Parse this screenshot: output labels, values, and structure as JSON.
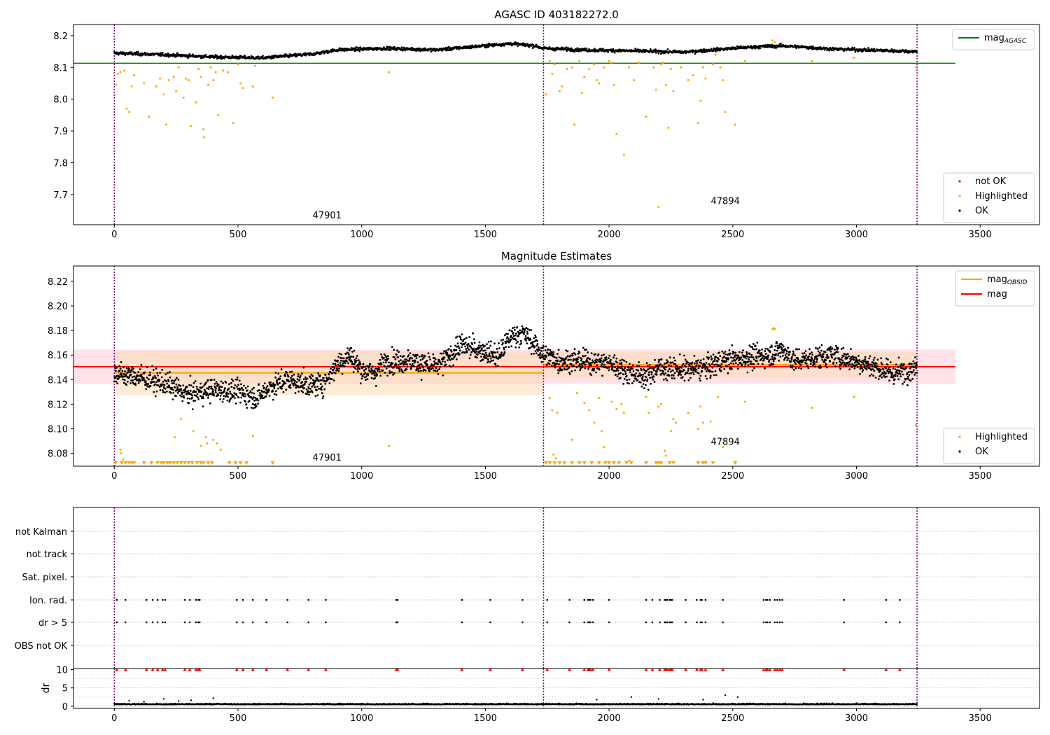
{
  "colors": {
    "ok": "#000000",
    "highlighted": "#ffa500",
    "not_ok": "#ff0000",
    "agasc_line": "#008000",
    "obs_boundary": "#800080",
    "mag_line": "#ff0000",
    "mag_band": "#ffc0cb",
    "obsid_line": "#ffa500",
    "obsid_band": "#ffdab0",
    "grid": "#b0b0b0"
  },
  "chart_data": [
    {
      "type": "scatter",
      "title": "AGASC ID 403182272.0",
      "xlabel": "",
      "ylabel": "",
      "xlim": [
        -165,
        3740
      ],
      "ylim": [
        7.605,
        8.235
      ],
      "xticks": [
        0,
        500,
        1000,
        1500,
        2000,
        2500,
        3000,
        3500
      ],
      "yticks": [
        7.7,
        7.8,
        7.9,
        8.0,
        8.1,
        8.2
      ],
      "obs_boundaries": [
        0,
        1735,
        3245
      ],
      "obsid_labels": [
        {
          "text": "47901",
          "x": 860,
          "y": 7.625
        },
        {
          "text": "47894",
          "x": 2470,
          "y": 7.67
        }
      ],
      "reference_line": {
        "name": "mag_AGASC",
        "y": 8.113,
        "x_range": [
          -165,
          3400
        ]
      },
      "trend_knots": [
        [
          0,
          8.145
        ],
        [
          200,
          8.14
        ],
        [
          400,
          8.133
        ],
        [
          600,
          8.13
        ],
        [
          800,
          8.142
        ],
        [
          900,
          8.155
        ],
        [
          1100,
          8.16
        ],
        [
          1300,
          8.155
        ],
        [
          1450,
          8.165
        ],
        [
          1600,
          8.175
        ],
        [
          1700,
          8.168
        ],
        [
          1735,
          8.16
        ],
        [
          1900,
          8.155
        ],
        [
          2100,
          8.152
        ],
        [
          2300,
          8.148
        ],
        [
          2500,
          8.16
        ],
        [
          2600,
          8.165
        ],
        [
          2700,
          8.168
        ],
        [
          2900,
          8.158
        ],
        [
          3245,
          8.15
        ]
      ],
      "highlighted_points": [
        [
          8,
          8.045
        ],
        [
          15,
          8.08
        ],
        [
          25,
          8.085
        ],
        [
          40,
          8.09
        ],
        [
          50,
          7.97
        ],
        [
          60,
          7.96
        ],
        [
          70,
          8.04
        ],
        [
          80,
          8.075
        ],
        [
          120,
          8.05
        ],
        [
          140,
          7.945
        ],
        [
          170,
          8.04
        ],
        [
          185,
          8.065
        ],
        [
          200,
          8.015
        ],
        [
          210,
          7.92
        ],
        [
          220,
          8.06
        ],
        [
          240,
          8.07
        ],
        [
          250,
          8.025
        ],
        [
          260,
          8.1
        ],
        [
          280,
          8.005
        ],
        [
          290,
          8.065
        ],
        [
          300,
          8.06
        ],
        [
          310,
          7.915
        ],
        [
          330,
          7.99
        ],
        [
          340,
          8.095
        ],
        [
          350,
          8.07
        ],
        [
          360,
          7.905
        ],
        [
          362,
          7.88
        ],
        [
          380,
          8.045
        ],
        [
          390,
          8.1
        ],
        [
          400,
          8.06
        ],
        [
          410,
          8.085
        ],
        [
          420,
          7.95
        ],
        [
          440,
          8.09
        ],
        [
          460,
          8.085
        ],
        [
          480,
          7.925
        ],
        [
          500,
          8.11
        ],
        [
          510,
          8.05
        ],
        [
          520,
          8.035
        ],
        [
          560,
          8.04
        ],
        [
          570,
          8.105
        ],
        [
          640,
          8.005
        ],
        [
          1110,
          8.085
        ],
        [
          1745,
          8.015
        ],
        [
          1760,
          8.12
        ],
        [
          1770,
          8.08
        ],
        [
          1780,
          8.11
        ],
        [
          1800,
          8.025
        ],
        [
          1810,
          8.04
        ],
        [
          1830,
          8.095
        ],
        [
          1850,
          8.1
        ],
        [
          1860,
          7.92
        ],
        [
          1880,
          8.12
        ],
        [
          1890,
          8.02
        ],
        [
          1900,
          8.07
        ],
        [
          1920,
          8.095
        ],
        [
          1940,
          8.11
        ],
        [
          1950,
          8.06
        ],
        [
          1960,
          8.05
        ],
        [
          1980,
          8.1
        ],
        [
          2000,
          8.12
        ],
        [
          2010,
          8.115
        ],
        [
          2020,
          8.045
        ],
        [
          2030,
          7.89
        ],
        [
          2060,
          7.825
        ],
        [
          2080,
          8.1
        ],
        [
          2100,
          8.06
        ],
        [
          2120,
          8.115
        ],
        [
          2150,
          7.945
        ],
        [
          2180,
          8.1
        ],
        [
          2190,
          8.03
        ],
        [
          2200,
          7.66
        ],
        [
          2210,
          8.11
        ],
        [
          2220,
          8.115
        ],
        [
          2230,
          8.045
        ],
        [
          2240,
          7.91
        ],
        [
          2250,
          8.095
        ],
        [
          2260,
          8.025
        ],
        [
          2290,
          8.1
        ],
        [
          2320,
          8.06
        ],
        [
          2340,
          8.075
        ],
        [
          2360,
          7.925
        ],
        [
          2370,
          7.995
        ],
        [
          2380,
          8.1
        ],
        [
          2390,
          8.065
        ],
        [
          2420,
          8.11
        ],
        [
          2430,
          8.14
        ],
        [
          2450,
          8.1
        ],
        [
          2460,
          8.06
        ],
        [
          2470,
          7.96
        ],
        [
          2510,
          7.92
        ],
        [
          2550,
          8.12
        ],
        [
          2660,
          8.185
        ],
        [
          2670,
          8.18
        ],
        [
          2820,
          8.12
        ],
        [
          2990,
          8.13
        ],
        [
          3240,
          8.1
        ]
      ]
    },
    {
      "type": "scatter",
      "title": "Magnitude Estimates",
      "xlabel": "",
      "ylabel": "",
      "xlim": [
        -165,
        3740
      ],
      "ylim": [
        8.0695,
        8.2325
      ],
      "xticks": [
        0,
        500,
        1000,
        1500,
        2000,
        2500,
        3000,
        3500
      ],
      "yticks": [
        8.08,
        8.1,
        8.12,
        8.14,
        8.16,
        8.18,
        8.2,
        8.22
      ],
      "obs_boundaries": [
        0,
        1735,
        3245
      ],
      "obsid_labels": [
        {
          "text": "47901",
          "x": 860,
          "y": 8.074
        },
        {
          "text": "47894",
          "x": 2470,
          "y": 8.087
        }
      ],
      "mag_line": {
        "name": "mag",
        "y": 8.1505,
        "band": [
          8.1365,
          8.1645
        ],
        "x_range": [
          -165,
          3400
        ]
      },
      "obsid_segments": [
        {
          "name": "47901",
          "x_range": [
            0,
            1735
          ],
          "y": 8.1455,
          "band": [
            8.1275,
            8.1635
          ]
        },
        {
          "name": "47894",
          "x_range": [
            1735,
            3245
          ],
          "y": 8.152,
          "band": [
            8.1415,
            8.1625
          ]
        }
      ],
      "trend_knots": [
        [
          0,
          8.145
        ],
        [
          100,
          8.142
        ],
        [
          200,
          8.137
        ],
        [
          300,
          8.128
        ],
        [
          400,
          8.132
        ],
        [
          500,
          8.13
        ],
        [
          580,
          8.125
        ],
        [
          620,
          8.133
        ],
        [
          700,
          8.14
        ],
        [
          800,
          8.135
        ],
        [
          850,
          8.138
        ],
        [
          900,
          8.152
        ],
        [
          950,
          8.16
        ],
        [
          1000,
          8.148
        ],
        [
          1050,
          8.145
        ],
        [
          1100,
          8.155
        ],
        [
          1200,
          8.155
        ],
        [
          1300,
          8.15
        ],
        [
          1350,
          8.158
        ],
        [
          1400,
          8.168
        ],
        [
          1450,
          8.165
        ],
        [
          1500,
          8.163
        ],
        [
          1550,
          8.158
        ],
        [
          1600,
          8.175
        ],
        [
          1650,
          8.178
        ],
        [
          1700,
          8.168
        ],
        [
          1735,
          8.16
        ],
        [
          1800,
          8.155
        ],
        [
          1900,
          8.155
        ],
        [
          2000,
          8.153
        ],
        [
          2100,
          8.145
        ],
        [
          2150,
          8.142
        ],
        [
          2200,
          8.15
        ],
        [
          2300,
          8.148
        ],
        [
          2400,
          8.15
        ],
        [
          2450,
          8.155
        ],
        [
          2550,
          8.158
        ],
        [
          2650,
          8.16
        ],
        [
          2700,
          8.165
        ],
        [
          2750,
          8.155
        ],
        [
          2900,
          8.16
        ],
        [
          3050,
          8.152
        ],
        [
          3150,
          8.145
        ],
        [
          3245,
          8.15
        ]
      ],
      "highlighted_points": [
        [
          25,
          8.083
        ],
        [
          28,
          8.08
        ],
        [
          35,
          8.075
        ],
        [
          245,
          8.093
        ],
        [
          270,
          8.108
        ],
        [
          320,
          8.098
        ],
        [
          350,
          8.086
        ],
        [
          370,
          8.093
        ],
        [
          375,
          8.088
        ],
        [
          400,
          8.091
        ],
        [
          415,
          8.088
        ],
        [
          430,
          8.083
        ],
        [
          560,
          8.094
        ],
        [
          1110,
          8.086
        ],
        [
          1760,
          8.125
        ],
        [
          1770,
          8.115
        ],
        [
          1775,
          8.079
        ],
        [
          1785,
          8.076
        ],
        [
          1790,
          8.113
        ],
        [
          1850,
          8.091
        ],
        [
          1870,
          8.129
        ],
        [
          1900,
          8.121
        ],
        [
          1920,
          8.115
        ],
        [
          1940,
          8.105
        ],
        [
          1960,
          8.125
        ],
        [
          1970,
          8.098
        ],
        [
          1980,
          8.085
        ],
        [
          2010,
          8.122
        ],
        [
          2030,
          8.116
        ],
        [
          2050,
          8.12
        ],
        [
          2060,
          8.113
        ],
        [
          2080,
          8.074
        ],
        [
          2150,
          8.126
        ],
        [
          2160,
          8.113
        ],
        [
          2200,
          8.118
        ],
        [
          2210,
          8.12
        ],
        [
          2225,
          8.082
        ],
        [
          2230,
          8.078
        ],
        [
          2250,
          8.098
        ],
        [
          2260,
          8.108
        ],
        [
          2270,
          8.105
        ],
        [
          2320,
          8.113
        ],
        [
          2360,
          8.1
        ],
        [
          2370,
          8.118
        ],
        [
          2380,
          8.105
        ],
        [
          2410,
          8.106
        ],
        [
          2440,
          8.126
        ],
        [
          2460,
          8.085
        ],
        [
          2550,
          8.122
        ],
        [
          2660,
          8.181
        ],
        [
          2665,
          8.182
        ],
        [
          2670,
          8.181
        ],
        [
          2820,
          8.117
        ],
        [
          2990,
          8.126
        ],
        [
          3240,
          8.103
        ]
      ],
      "clipped_below_x": [
        5,
        30,
        45,
        60,
        70,
        80,
        120,
        150,
        175,
        190,
        200,
        215,
        225,
        240,
        255,
        270,
        285,
        300,
        315,
        335,
        350,
        360,
        380,
        395,
        465,
        490,
        510,
        535,
        640,
        1745,
        1760,
        1780,
        1800,
        1820,
        1850,
        1880,
        1900,
        1930,
        1960,
        1985,
        2000,
        2020,
        2040,
        2070,
        2090,
        2150,
        2190,
        2200,
        2210,
        2245,
        2260,
        2360,
        2380,
        2390,
        2420,
        2510
      ]
    },
    {
      "type": "scatter",
      "title": "",
      "xlabel": "",
      "ylabel": "",
      "xlim": [
        -165,
        3740
      ],
      "categories": [
        "not Kalman",
        "not track",
        "Sat. pixel.",
        "Ion. rad.",
        "dr > 5",
        "OBS not OK"
      ],
      "flag_x": [
        10,
        45,
        130,
        155,
        175,
        195,
        205,
        285,
        305,
        330,
        340,
        345,
        495,
        520,
        560,
        615,
        700,
        785,
        855,
        1140,
        1145,
        1405,
        1520,
        1650,
        1750,
        1840,
        1900,
        1915,
        1920,
        1925,
        1935,
        2000,
        2150,
        2175,
        2205,
        2225,
        2230,
        2235,
        2245,
        2250,
        2255,
        2310,
        2355,
        2370,
        2375,
        2390,
        2460,
        2625,
        2635,
        2640,
        2650,
        2670,
        2680,
        2690,
        2700,
        2950,
        3120,
        3175
      ],
      "obs_boundaries": [
        0,
        1735,
        3245
      ]
    },
    {
      "type": "scatter",
      "title": "",
      "xlabel": "",
      "ylabel": "dr",
      "xlim": [
        -165,
        3740
      ],
      "ylim": [
        -0.6,
        10.3
      ],
      "xticks": [
        0,
        500,
        1000,
        1500,
        2000,
        2500,
        3000,
        3500
      ],
      "yticks": [
        0,
        5,
        10
      ],
      "obs_boundaries": [
        0,
        1735,
        3245
      ],
      "clipped_above_x": [
        10,
        45,
        130,
        155,
        175,
        195,
        205,
        285,
        305,
        330,
        340,
        345,
        495,
        520,
        560,
        615,
        700,
        785,
        855,
        1140,
        1145,
        1405,
        1520,
        1650,
        1750,
        1840,
        1900,
        1915,
        1920,
        1925,
        1935,
        2000,
        2150,
        2175,
        2205,
        2225,
        2230,
        2235,
        2245,
        2250,
        2255,
        2310,
        2355,
        2370,
        2375,
        2390,
        2460,
        2625,
        2635,
        2640,
        2650,
        2670,
        2680,
        2690,
        2700,
        2950,
        3120,
        3175
      ],
      "outliers": [
        [
          60,
          1.5
        ],
        [
          120,
          1.2
        ],
        [
          200,
          2.0
        ],
        [
          260,
          1.4
        ],
        [
          310,
          1.6
        ],
        [
          400,
          2.2
        ],
        [
          1950,
          1.8
        ],
        [
          2090,
          2.5
        ],
        [
          2200,
          2.0
        ],
        [
          2380,
          1.8
        ],
        [
          2470,
          3.0
        ],
        [
          2520,
          2.5
        ]
      ]
    }
  ],
  "legends": {
    "top_lines": [
      {
        "label": "mag",
        "sub": "AGASC",
        "color_key": "agasc_line"
      }
    ],
    "top_points": [
      {
        "label": "not OK",
        "color_key": "not_ok"
      },
      {
        "label": "Highlighted",
        "color_key": "highlighted"
      },
      {
        "label": "OK",
        "color_key": "ok"
      }
    ],
    "mid_lines": [
      {
        "label": "mag",
        "sub": "OBSID",
        "color_key": "obsid_line"
      },
      {
        "label": "mag",
        "sub": "",
        "color_key": "mag_line"
      }
    ],
    "mid_points": [
      {
        "label": "Highlighted",
        "color_key": "highlighted"
      },
      {
        "label": "OK",
        "color_key": "ok"
      }
    ]
  }
}
